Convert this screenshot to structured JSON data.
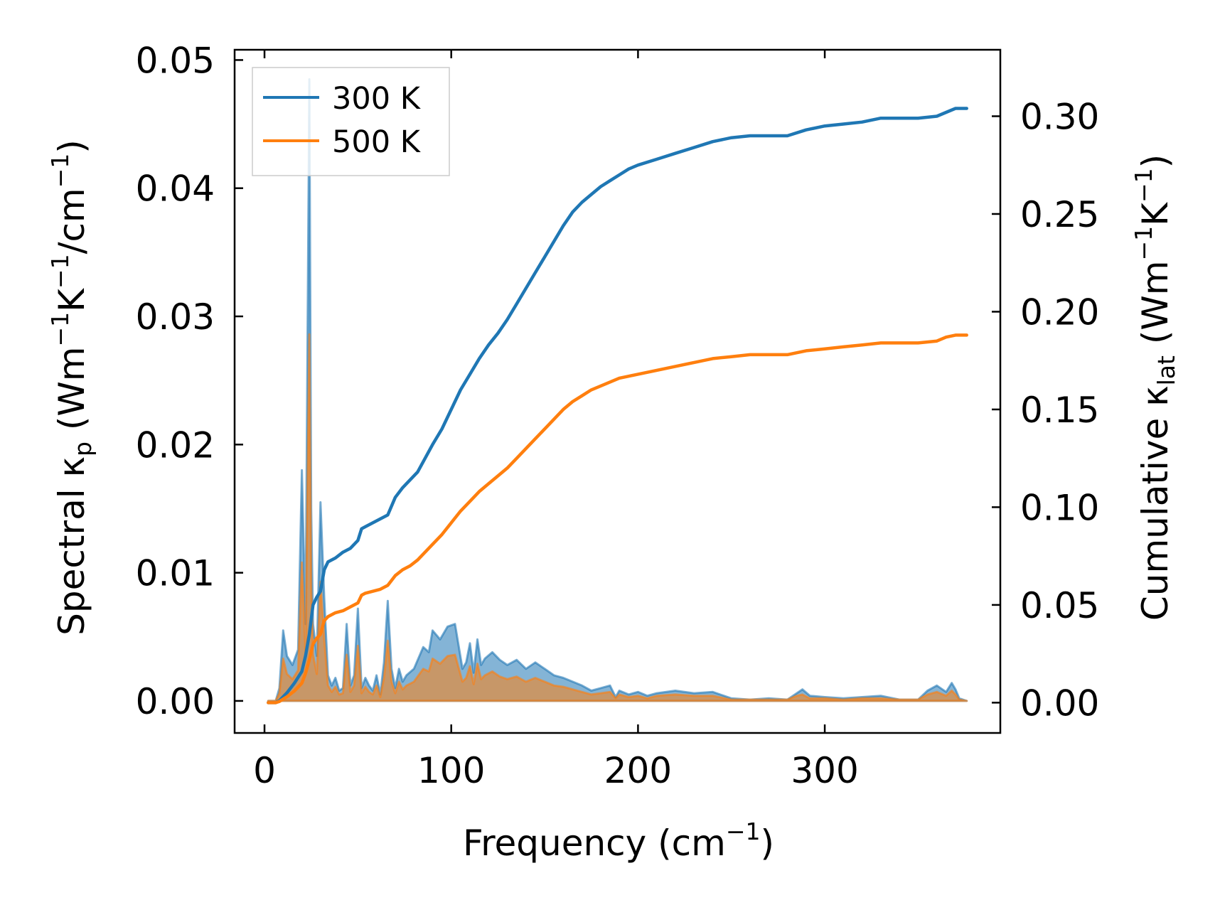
{
  "chart_data": {
    "type": "line",
    "xlabel": "Frequency (cm",
    "xlabel_sup": "−1",
    "xlabel_end": ")",
    "ylabel_left": "Spectral κ",
    "ylabel_left_sub": "p",
    "ylabel_left_rest": " (Wm",
    "ylabel_left_sup1": "−1",
    "ylabel_left_mid": "K",
    "ylabel_left_sup2": "−1",
    "ylabel_left_mid2": "/cm",
    "ylabel_left_sup3": "−1",
    "ylabel_left_end": ")",
    "ylabel_right": "Cumulative κ",
    "ylabel_right_sub": "lat",
    "ylabel_right_rest": " (Wm",
    "ylabel_right_sup1": "−1",
    "ylabel_right_mid": "K",
    "ylabel_right_sup2": "−1",
    "ylabel_right_end": ")",
    "xlim": [
      -16,
      394
    ],
    "ylim_left": [
      -0.0025,
      0.0508
    ],
    "ylim_right": [
      -0.0155,
      0.334
    ],
    "x_ticks": [
      0,
      100,
      200,
      300
    ],
    "x_tick_labels": [
      "0",
      "100",
      "200",
      "300"
    ],
    "y_left_ticks": [
      0,
      0.01,
      0.02,
      0.03,
      0.04,
      0.05
    ],
    "y_left_tick_labels": [
      "0.00",
      "0.01",
      "0.02",
      "0.03",
      "0.04",
      "0.05"
    ],
    "y_right_ticks": [
      0,
      0.05,
      0.1,
      0.15,
      0.2,
      0.25,
      0.3
    ],
    "y_right_tick_labels": [
      "0.00",
      "0.05",
      "0.10",
      "0.15",
      "0.20",
      "0.25",
      "0.30"
    ],
    "legend": {
      "placement": "top-left",
      "entries": [
        "300 K",
        "500 K"
      ]
    },
    "colors": {
      "300 K": "#1f77b4",
      "500 K": "#ff7f0e"
    },
    "series": [
      {
        "name": "300 K",
        "axis": "right",
        "kind": "cumulative",
        "x": [
          2,
          6,
          8,
          12,
          16,
          20,
          22,
          24,
          26,
          28,
          30,
          32,
          34,
          38,
          42,
          46,
          50,
          52,
          54,
          58,
          62,
          66,
          70,
          74,
          78,
          82,
          86,
          90,
          95,
          100,
          105,
          110,
          115,
          120,
          125,
          130,
          135,
          140,
          145,
          150,
          155,
          160,
          165,
          170,
          175,
          180,
          185,
          190,
          195,
          200,
          210,
          220,
          230,
          240,
          250,
          260,
          270,
          280,
          290,
          300,
          310,
          320,
          330,
          340,
          350,
          360,
          365,
          370,
          376
        ],
        "y": [
          0,
          0,
          0.001,
          0.005,
          0.01,
          0.016,
          0.024,
          0.035,
          0.05,
          0.054,
          0.057,
          0.068,
          0.072,
          0.074,
          0.077,
          0.079,
          0.083,
          0.089,
          0.09,
          0.092,
          0.094,
          0.096,
          0.105,
          0.11,
          0.114,
          0.118,
          0.125,
          0.132,
          0.14,
          0.15,
          0.16,
          0.168,
          0.176,
          0.183,
          0.189,
          0.196,
          0.204,
          0.212,
          0.22,
          0.228,
          0.236,
          0.244,
          0.251,
          0.256,
          0.26,
          0.264,
          0.267,
          0.27,
          0.273,
          0.275,
          0.278,
          0.281,
          0.284,
          0.287,
          0.289,
          0.29,
          0.29,
          0.29,
          0.293,
          0.295,
          0.296,
          0.297,
          0.299,
          0.299,
          0.299,
          0.3,
          0.302,
          0.304,
          0.304
        ]
      },
      {
        "name": "500 K",
        "axis": "right",
        "kind": "cumulative",
        "x": [
          2,
          6,
          8,
          12,
          16,
          20,
          22,
          24,
          26,
          28,
          30,
          32,
          34,
          38,
          42,
          46,
          50,
          52,
          54,
          58,
          62,
          66,
          70,
          74,
          78,
          82,
          86,
          90,
          95,
          100,
          105,
          110,
          115,
          120,
          125,
          130,
          135,
          140,
          145,
          150,
          155,
          160,
          165,
          170,
          175,
          180,
          185,
          190,
          195,
          200,
          210,
          220,
          230,
          240,
          250,
          260,
          270,
          280,
          290,
          300,
          310,
          320,
          330,
          340,
          350,
          360,
          365,
          370,
          376
        ],
        "y": [
          0,
          0,
          0.0006,
          0.003,
          0.006,
          0.01,
          0.015,
          0.022,
          0.03,
          0.033,
          0.035,
          0.042,
          0.044,
          0.046,
          0.047,
          0.049,
          0.051,
          0.055,
          0.056,
          0.057,
          0.058,
          0.06,
          0.065,
          0.068,
          0.07,
          0.073,
          0.077,
          0.081,
          0.086,
          0.092,
          0.098,
          0.103,
          0.108,
          0.112,
          0.116,
          0.12,
          0.125,
          0.13,
          0.135,
          0.14,
          0.145,
          0.15,
          0.154,
          0.157,
          0.16,
          0.162,
          0.164,
          0.166,
          0.167,
          0.168,
          0.17,
          0.172,
          0.174,
          0.176,
          0.177,
          0.178,
          0.178,
          0.178,
          0.18,
          0.181,
          0.182,
          0.183,
          0.184,
          0.184,
          0.184,
          0.185,
          0.187,
          0.188,
          0.188
        ]
      },
      {
        "name": "300 K",
        "axis": "left",
        "kind": "spectral",
        "x": [
          2,
          6,
          8,
          10,
          12,
          15,
          18,
          20,
          22,
          24,
          25,
          26,
          28,
          30,
          32,
          34,
          36,
          38,
          40,
          42,
          44,
          46,
          48,
          50,
          52,
          54,
          56,
          58,
          60,
          62,
          64,
          66,
          68,
          70,
          72,
          74,
          76,
          80,
          85,
          88,
          90,
          94,
          98,
          102,
          106,
          108,
          110,
          112,
          114,
          116,
          118,
          122,
          126,
          130,
          135,
          140,
          145,
          150,
          155,
          160,
          165,
          170,
          175,
          180,
          185,
          188,
          190,
          195,
          200,
          205,
          210,
          220,
          230,
          240,
          250,
          260,
          270,
          280,
          285,
          288,
          292,
          300,
          310,
          320,
          330,
          340,
          350,
          355,
          360,
          365,
          368,
          370,
          372,
          376
        ],
        "y": [
          0,
          0,
          0.001,
          0.0055,
          0.0035,
          0.0028,
          0.004,
          0.018,
          0.006,
          0.0485,
          0.015,
          0.006,
          0.0035,
          0.0155,
          0.008,
          0.002,
          0.0012,
          0.0018,
          0.0008,
          0.001,
          0.006,
          0.0012,
          0.002,
          0.0072,
          0.001,
          0.0018,
          0.0012,
          0.0008,
          0.002,
          0.0005,
          0.003,
          0.0078,
          0.0025,
          0.001,
          0.0025,
          0.0015,
          0.002,
          0.0025,
          0.0042,
          0.0038,
          0.0055,
          0.0048,
          0.0058,
          0.006,
          0.0025,
          0.003,
          0.0045,
          0.0022,
          0.0048,
          0.0028,
          0.0033,
          0.0038,
          0.0032,
          0.0028,
          0.0032,
          0.0025,
          0.003,
          0.0025,
          0.002,
          0.0018,
          0.0015,
          0.0012,
          0.0008,
          0.001,
          0.0012,
          0.0003,
          0.0008,
          0.0005,
          0.0007,
          0.0004,
          0.0006,
          0.0008,
          0.0006,
          0.0007,
          0.0002,
          0.0001,
          0.0002,
          0.0001,
          0.0006,
          0.0009,
          0.0004,
          0.0003,
          0.0002,
          0.0003,
          0.0004,
          0.0001,
          0.0001,
          0.0008,
          0.0012,
          0.0007,
          0.0014,
          0.0009,
          0.0002,
          0
        ]
      },
      {
        "name": "500 K",
        "axis": "left",
        "kind": "spectral",
        "x": [
          2,
          6,
          8,
          10,
          12,
          15,
          18,
          20,
          22,
          24,
          25,
          26,
          28,
          30,
          32,
          34,
          36,
          38,
          40,
          42,
          44,
          46,
          48,
          50,
          52,
          54,
          56,
          58,
          60,
          62,
          64,
          66,
          68,
          70,
          72,
          74,
          76,
          80,
          85,
          88,
          90,
          94,
          98,
          102,
          106,
          108,
          110,
          112,
          114,
          116,
          118,
          122,
          126,
          130,
          135,
          140,
          145,
          150,
          155,
          160,
          165,
          170,
          175,
          180,
          185,
          188,
          190,
          195,
          200,
          205,
          210,
          220,
          230,
          240,
          250,
          260,
          270,
          280,
          285,
          288,
          292,
          300,
          310,
          320,
          330,
          340,
          350,
          355,
          360,
          365,
          368,
          370,
          372,
          376
        ],
        "y": [
          0,
          0,
          0.0006,
          0.0033,
          0.0021,
          0.0017,
          0.0024,
          0.0108,
          0.0036,
          0.0286,
          0.009,
          0.0036,
          0.0021,
          0.0093,
          0.0048,
          0.0012,
          0.0007,
          0.0011,
          0.0005,
          0.0006,
          0.0036,
          0.0007,
          0.0012,
          0.0043,
          0.0006,
          0.0011,
          0.0007,
          0.0005,
          0.0012,
          0.0003,
          0.0018,
          0.0047,
          0.0015,
          0.0006,
          0.0015,
          0.0009,
          0.0012,
          0.0015,
          0.0025,
          0.0023,
          0.0033,
          0.0029,
          0.0035,
          0.0036,
          0.0015,
          0.0018,
          0.0027,
          0.0013,
          0.0029,
          0.0017,
          0.002,
          0.0023,
          0.0019,
          0.0017,
          0.0019,
          0.0015,
          0.0018,
          0.0015,
          0.0012,
          0.0011,
          0.0009,
          0.0007,
          0.0005,
          0.0006,
          0.0007,
          0.0002,
          0.0005,
          0.0003,
          0.0004,
          0.0002,
          0.0004,
          0.0005,
          0.0004,
          0.0004,
          0.0001,
          0.0001,
          0.0001,
          0.0001,
          0.0004,
          0.0005,
          0.0002,
          0.0002,
          0.0001,
          0.0002,
          0.0002,
          0.0001,
          0.0001,
          0.0005,
          0.0007,
          0.0004,
          0.0008,
          0.0005,
          0.0001,
          0
        ]
      }
    ]
  }
}
